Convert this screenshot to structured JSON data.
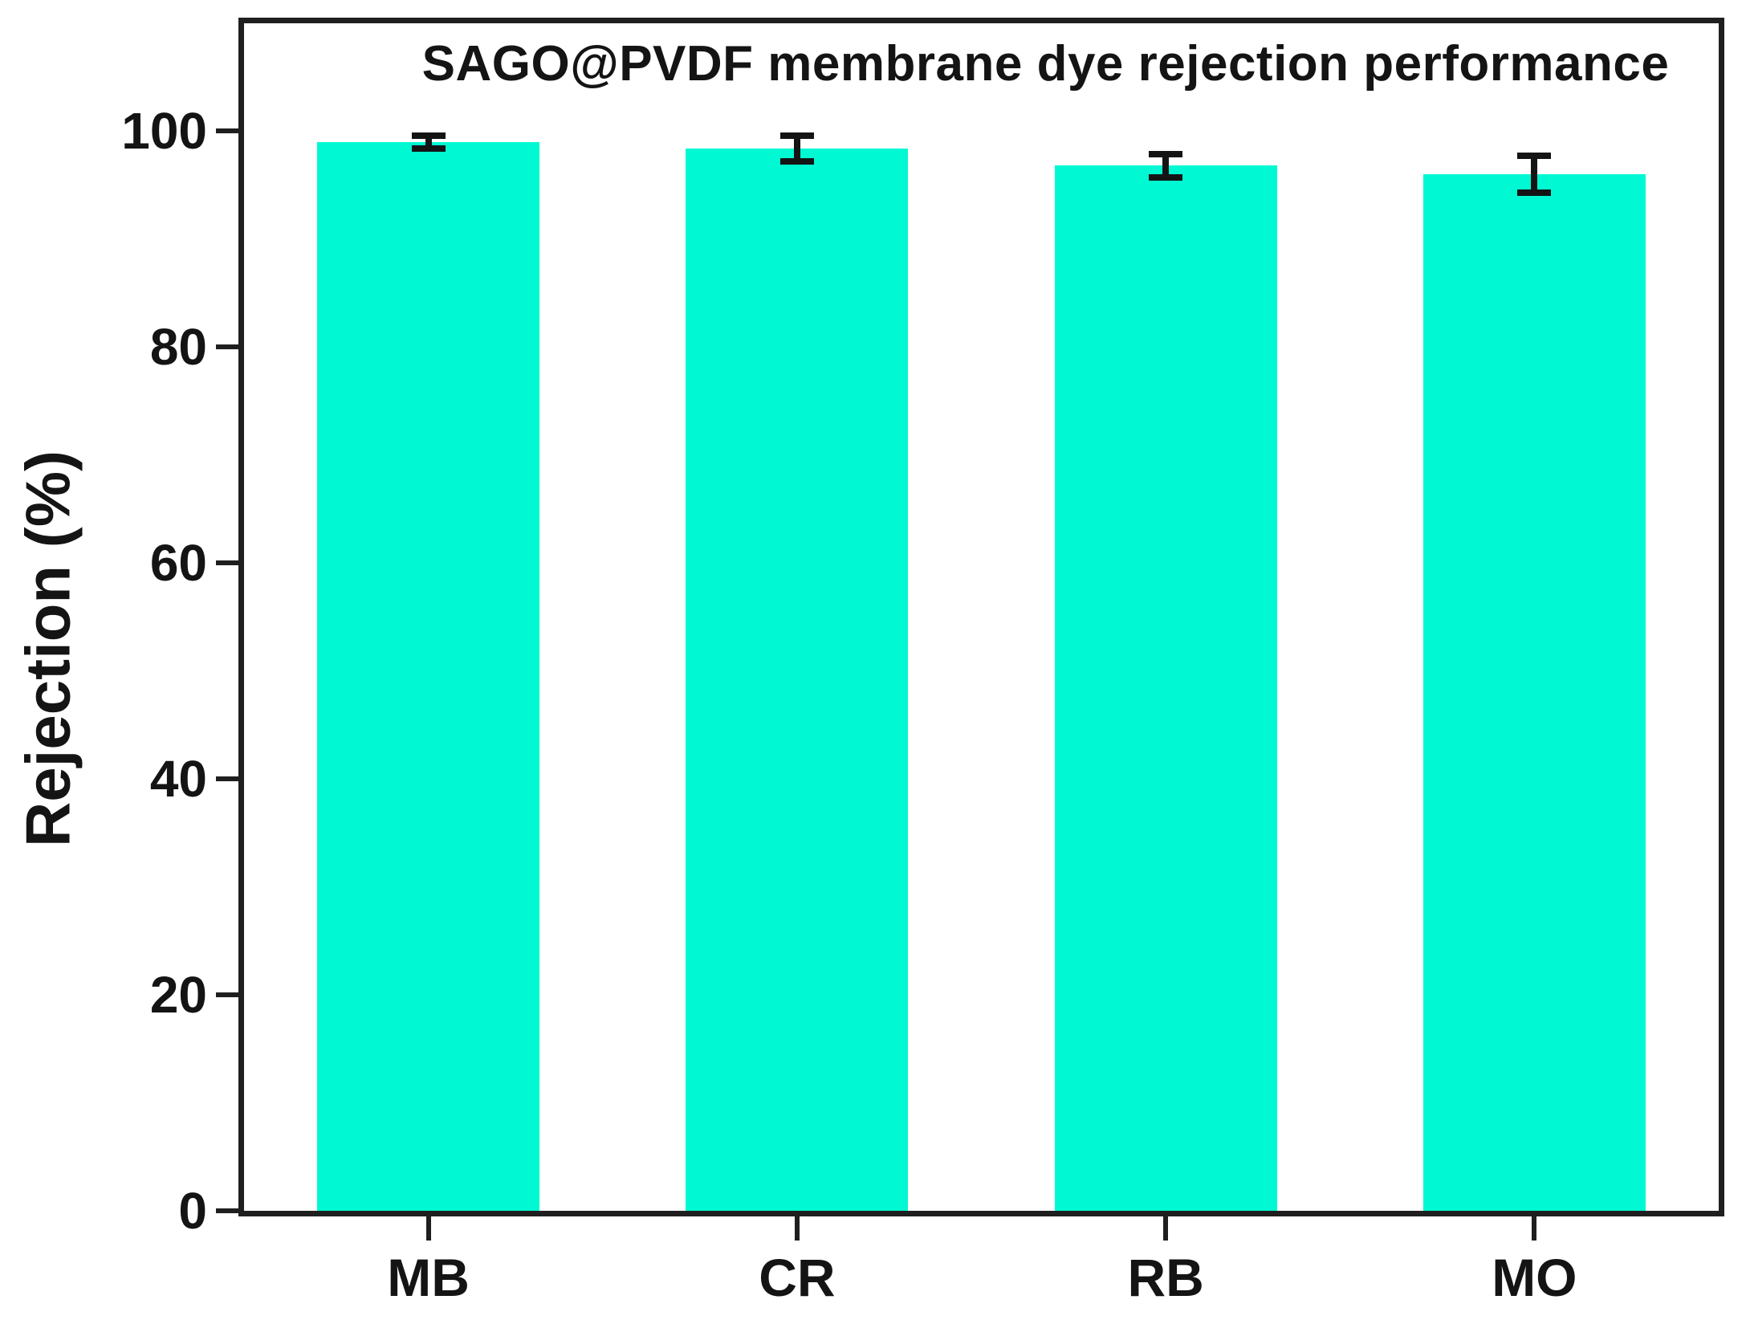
{
  "chart_data": {
    "type": "bar",
    "title": "SAGO@PVDF membrane dye rejection performance",
    "ylabel": "Rejection (%)",
    "xlabel": "",
    "categories": [
      "MB",
      "CR",
      "RB",
      "MO"
    ],
    "values": [
      99.0,
      98.4,
      96.8,
      96.0
    ],
    "error_bars": [
      0.6,
      1.2,
      1.1,
      1.7
    ],
    "ylim": [
      0,
      110
    ],
    "yticks": [
      0,
      20,
      40,
      60,
      80,
      100
    ],
    "grid": false,
    "legend": "none",
    "bar_color": "#00f9d2",
    "error_bar_color": "#141414",
    "axis_color": "#1f1f1f",
    "text_color": "#141414",
    "background_color": "#ffffff"
  }
}
